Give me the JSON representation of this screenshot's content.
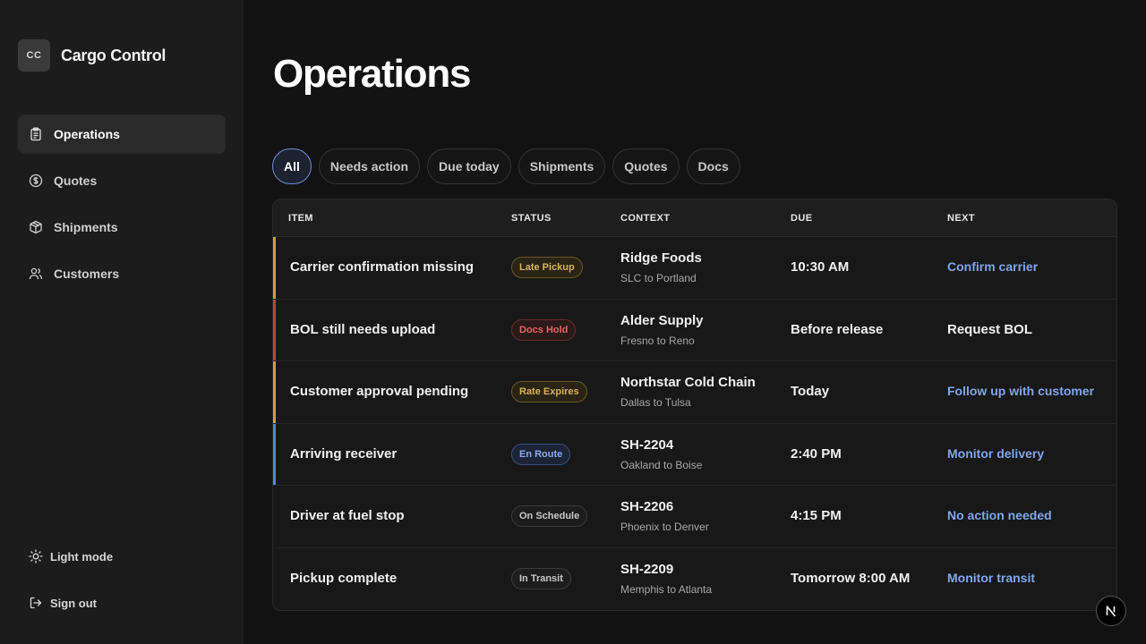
{
  "brand": {
    "logo_text": "CC",
    "name": "Cargo Control"
  },
  "sidebar": {
    "items": [
      {
        "label": "Operations",
        "icon": "clipboard-icon",
        "active": true
      },
      {
        "label": "Quotes",
        "icon": "dollar-circle-icon",
        "active": false
      },
      {
        "label": "Shipments",
        "icon": "package-icon",
        "active": false
      },
      {
        "label": "Customers",
        "icon": "users-icon",
        "active": false
      }
    ],
    "light_mode_label": "Light mode",
    "sign_out_label": "Sign out"
  },
  "page": {
    "title": "Operations"
  },
  "filters": [
    {
      "label": "All",
      "active": true
    },
    {
      "label": "Needs action",
      "active": false
    },
    {
      "label": "Due today",
      "active": false
    },
    {
      "label": "Shipments",
      "active": false
    },
    {
      "label": "Quotes",
      "active": false
    },
    {
      "label": "Docs",
      "active": false
    }
  ],
  "table": {
    "headers": {
      "item": "ITEM",
      "status": "STATUS",
      "context": "CONTEXT",
      "due": "DUE",
      "next": "NEXT"
    },
    "rows": [
      {
        "item": "Carrier confirmation missing",
        "status": "Late Pickup",
        "status_tone": "amber",
        "context": "Ridge Foods",
        "route": "SLC to Portland",
        "due": "10:30 AM",
        "next": "Confirm carrier",
        "next_link": true,
        "accent": "#c9a23a"
      },
      {
        "item": "BOL still needs upload",
        "status": "Docs Hold",
        "status_tone": "red",
        "context": "Alder Supply",
        "route": "Fresno to Reno",
        "due": "Before release",
        "next": "Request BOL",
        "next_link": false,
        "accent": "#c0433c"
      },
      {
        "item": "Customer approval pending",
        "status": "Rate Expires",
        "status_tone": "amber",
        "context": "Northstar Cold Chain",
        "route": "Dallas to Tulsa",
        "due": "Today",
        "next": "Follow up with customer",
        "next_link": true,
        "accent": "#c9a23a"
      },
      {
        "item": "Arriving receiver",
        "status": "En Route",
        "status_tone": "blue",
        "context": "SH-2204",
        "route": "Oakland to Boise",
        "due": "2:40 PM",
        "next": "Monitor delivery",
        "next_link": true,
        "accent": "#5b84d6"
      },
      {
        "item": "Driver at fuel stop",
        "status": "On Schedule",
        "status_tone": "gray",
        "context": "SH-2206",
        "route": "Phoenix to Denver",
        "due": "4:15 PM",
        "next": "No action needed",
        "next_link": true,
        "accent": ""
      },
      {
        "item": "Pickup complete",
        "status": "In Transit",
        "status_tone": "gray",
        "context": "SH-2209",
        "route": "Memphis to Atlanta",
        "due": "Tomorrow 8:00 AM",
        "next": "Monitor transit",
        "next_link": true,
        "accent": ""
      }
    ]
  },
  "tones": {
    "amber": {
      "color": "#d8b25a",
      "border": "#6b5626",
      "bg": "#2a2416"
    },
    "red": {
      "color": "#e2675f",
      "border": "#6a2c29",
      "bg": "#2a1a19"
    },
    "blue": {
      "color": "#8aaaf0",
      "border": "#3a4e80",
      "bg": "#1c2436"
    },
    "gray": {
      "color": "#c8c8c8",
      "border": "#3a3a3a",
      "bg": "#1d1d1d"
    }
  },
  "corner_badge": {
    "letter": "N"
  }
}
